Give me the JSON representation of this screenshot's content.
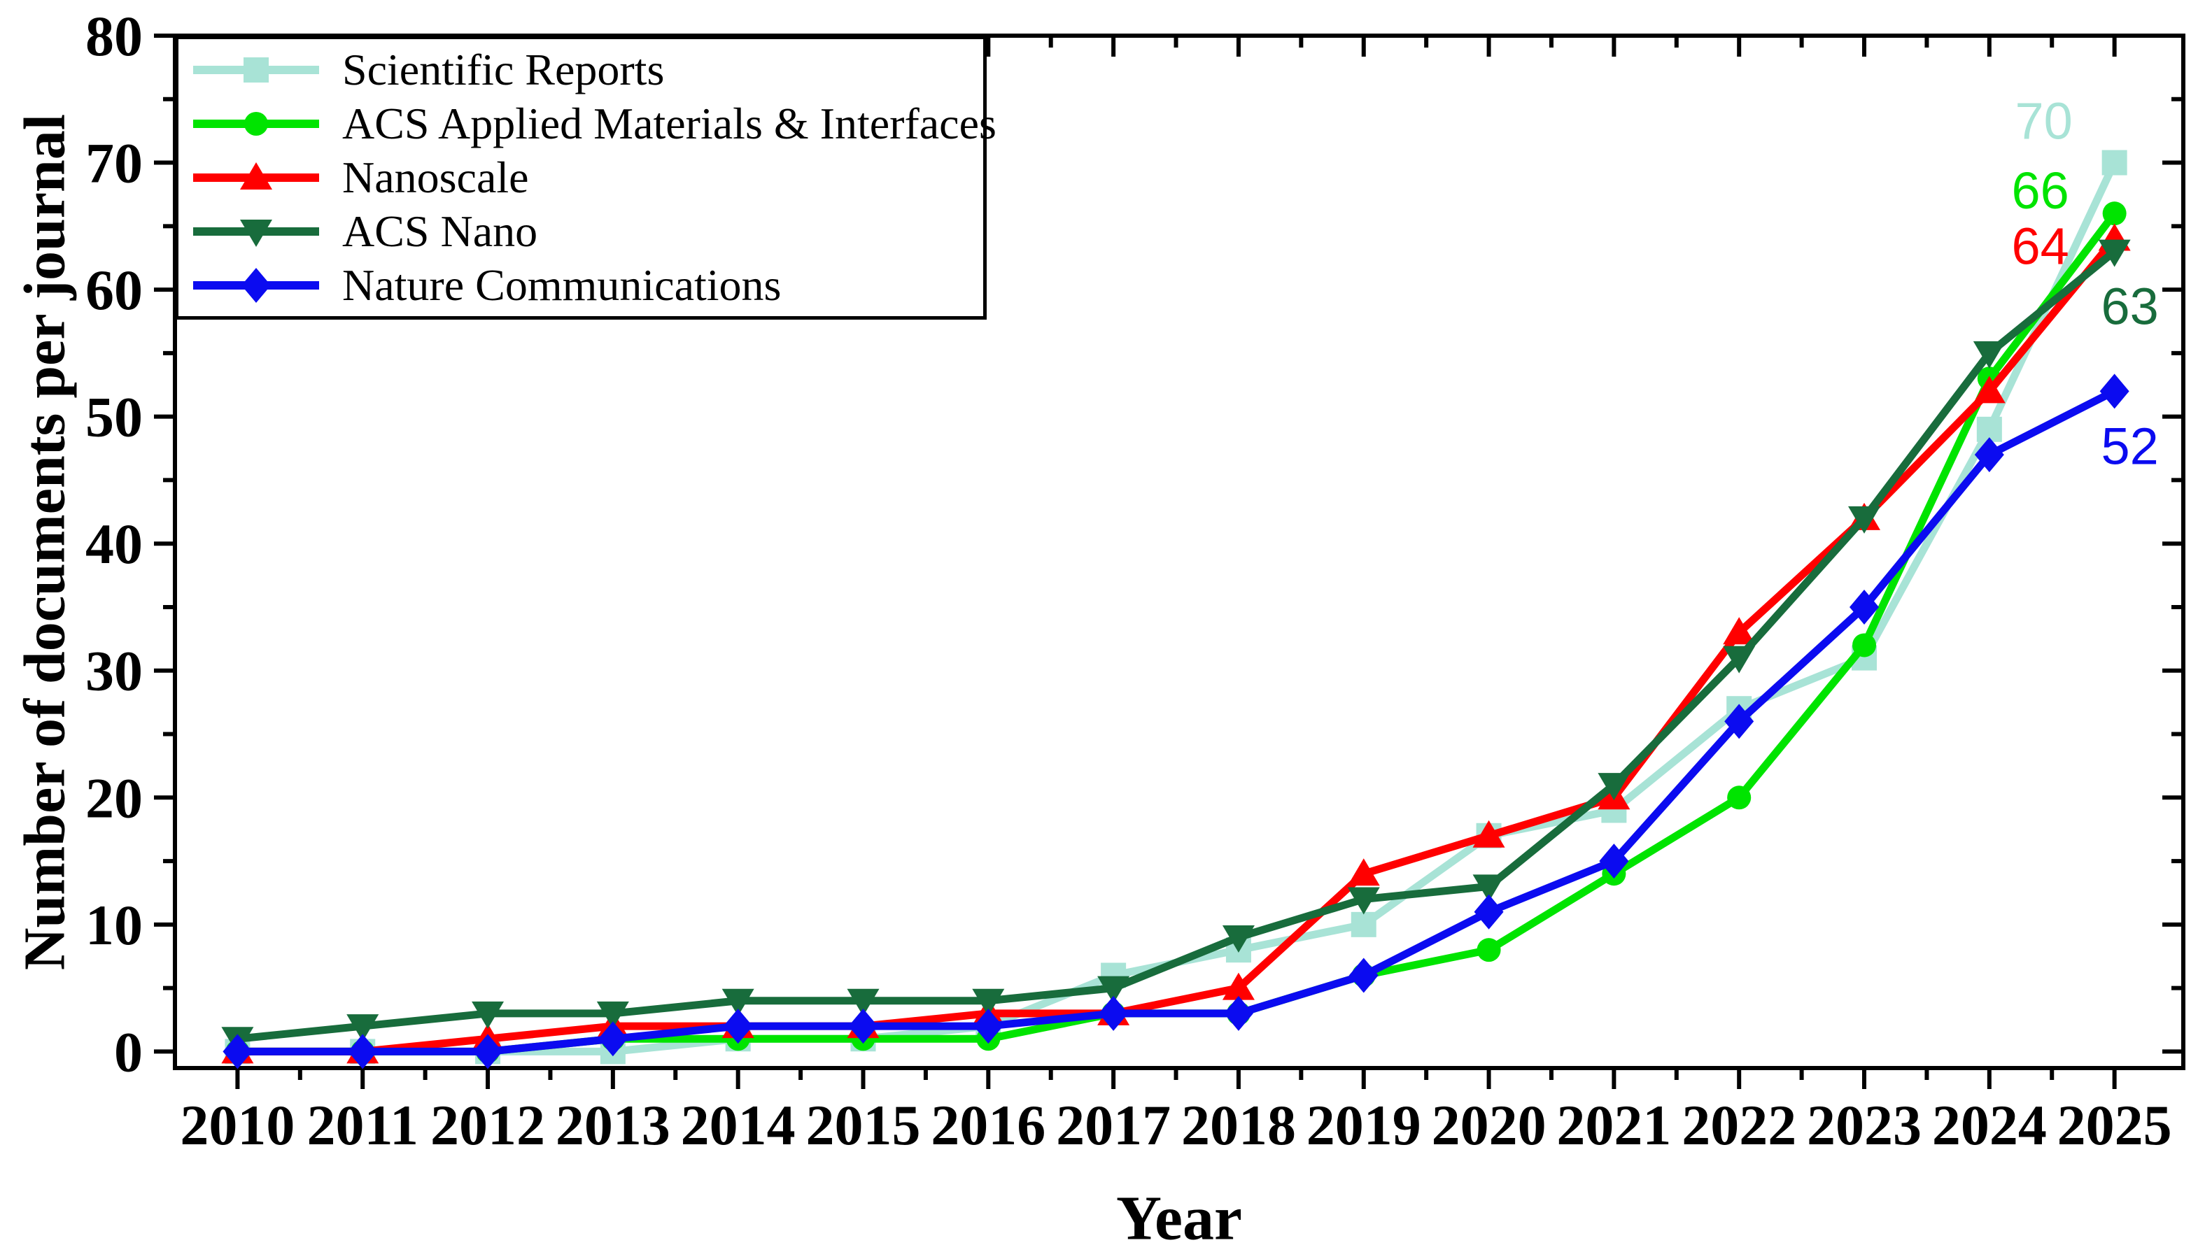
{
  "figure": {
    "background": "#ffffff",
    "axis_color": "#000000"
  },
  "chart_data": {
    "type": "line",
    "title": "",
    "xlabel": "Year",
    "ylabel": "Number of documents per journal",
    "x": [
      2010,
      2011,
      2012,
      2013,
      2014,
      2015,
      2016,
      2017,
      2018,
      2019,
      2020,
      2021,
      2022,
      2023,
      2024,
      2025
    ],
    "xticklabels": [
      "2010",
      "2011",
      "2012",
      "2013",
      "2014",
      "2015",
      "2016",
      "2017",
      "2018",
      "2019",
      "2020",
      "2021",
      "2022",
      "2023",
      "2024",
      "2025"
    ],
    "yticks": [
      0,
      10,
      20,
      30,
      40,
      50,
      60,
      70,
      80
    ],
    "ylim": [
      0,
      80
    ],
    "grid": false,
    "legend_position": "upper-left",
    "series": [
      {
        "name": "Scientific Reports",
        "color": "#A8E3D6",
        "marker": "square",
        "values": [
          0,
          0,
          0,
          0,
          1,
          1,
          2,
          6,
          8,
          10,
          17,
          19,
          27,
          31,
          49,
          70
        ],
        "end_label": "70"
      },
      {
        "name": "ACS Applied Materials & Interfaces",
        "color": "#00E400",
        "marker": "circle",
        "values": [
          0,
          0,
          0,
          1,
          1,
          1,
          1,
          3,
          3,
          6,
          8,
          14,
          20,
          32,
          53,
          66
        ],
        "end_label": "66"
      },
      {
        "name": "Nanoscale",
        "color": "#FF0000",
        "marker": "triangle-up",
        "values": [
          0,
          0,
          1,
          2,
          2,
          2,
          3,
          3,
          5,
          14,
          17,
          20,
          33,
          42,
          52,
          64
        ],
        "end_label": "64"
      },
      {
        "name": "ACS Nano",
        "color": "#186C3C",
        "marker": "triangle-down",
        "values": [
          1,
          2,
          3,
          3,
          4,
          4,
          4,
          5,
          9,
          12,
          13,
          21,
          31,
          42,
          55,
          63
        ],
        "end_label": "63"
      },
      {
        "name": "Nature Communications",
        "color": "#0B0BF0",
        "marker": "diamond",
        "values": [
          0,
          0,
          0,
          1,
          2,
          2,
          2,
          3,
          3,
          6,
          11,
          15,
          26,
          35,
          47,
          52
        ],
        "end_label": "52"
      }
    ]
  }
}
